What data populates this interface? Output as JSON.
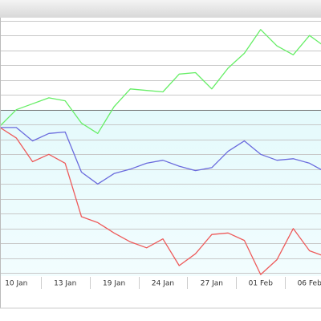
{
  "chart_data": {
    "type": "line",
    "categories": [
      null,
      "10 Jan",
      null,
      null,
      "13 Jan",
      null,
      null,
      "19 Jan",
      null,
      null,
      "24 Jan",
      null,
      null,
      "27 Jan",
      null,
      null,
      "01 Feb",
      null,
      null,
      "06 Feb",
      null
    ],
    "series": [
      {
        "color": "#66ee66",
        "values": [
          -1.1,
          0,
          0.4,
          0.8,
          0.6,
          -0.9,
          -1.6,
          0.2,
          1.4,
          1.3,
          1.2,
          2.4,
          2.5,
          1.4,
          2.8,
          3.8,
          5.4,
          4.3,
          3.7,
          5.0,
          4.2
        ]
      },
      {
        "color": "#6a6add",
        "values": [
          -1.2,
          -1.2,
          -2.1,
          -1.6,
          -1.5,
          -4.2,
          -5.0,
          -4.3,
          -4.0,
          -3.6,
          -3.4,
          -3.8,
          -4.1,
          -3.9,
          -2.8,
          -2.1,
          -3.0,
          -3.4,
          -3.3,
          -3.6,
          -4.2
        ]
      },
      {
        "color": "#ee5a5a",
        "values": [
          -1.2,
          -1.9,
          -3.5,
          -3.0,
          -3.6,
          -7.2,
          -7.6,
          -8.3,
          -8.9,
          -9.3,
          -8.7,
          -10.5,
          -9.7,
          -8.4,
          -8.3,
          -8.8,
          -11.1,
          -10.1,
          -8.0,
          -9.5,
          -9.9
        ]
      }
    ],
    "ylim": [
      -11.2,
      6.2
    ],
    "yticks": [
      -11,
      -10,
      -9,
      -8,
      -7,
      -6,
      -5,
      -4,
      -3,
      -2,
      -1,
      0,
      1,
      2,
      3,
      4,
      5,
      6
    ],
    "grid": true
  }
}
